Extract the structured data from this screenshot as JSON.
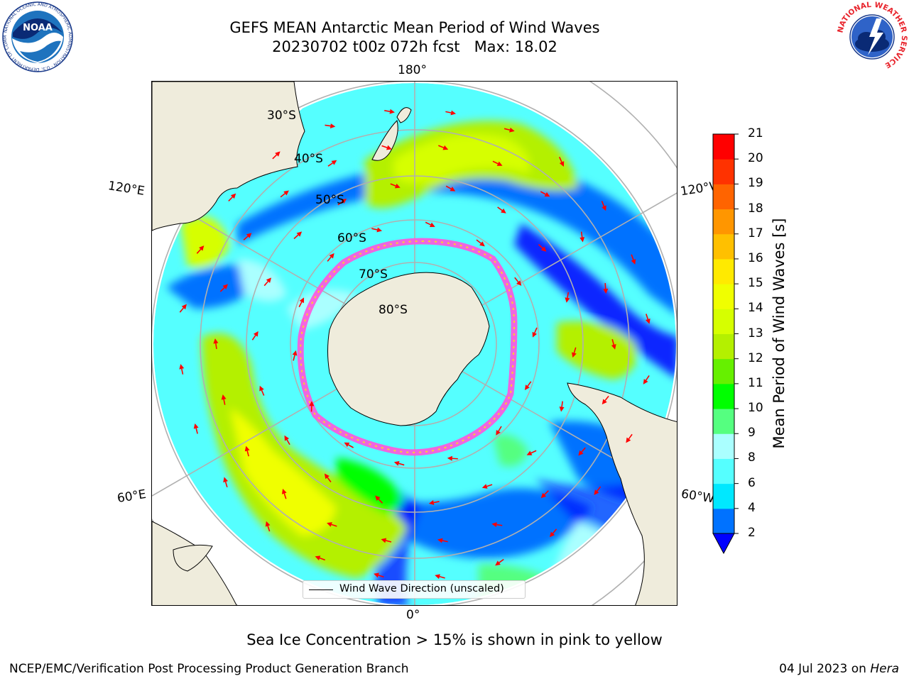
{
  "header": {
    "title_line1": "GEFS MEAN Antarctic Mean Period of Wind Waves",
    "title_line2": "20230702 t00z 072h fcst   Max: 18.02"
  },
  "logos": {
    "left": "noaa-logo",
    "left_text": "NOAA",
    "left_ring_text": "NATIONAL OCEANIC AND ATMOSPHERIC ADMINISTRATION · U.S. DEPARTMENT OF COMMERCE",
    "right": "nws-logo",
    "right_ring_text": "NATIONAL WEATHER SERVICE"
  },
  "map": {
    "projection": "south-polar-stereographic",
    "longitude_labels": {
      "top": "180°",
      "bottom": "0°",
      "upper_left": "120°E",
      "upper_right": "120°W",
      "lower_left": "60°E",
      "lower_right": "60°W"
    },
    "latitude_labels": [
      "30°S",
      "40°S",
      "50°S",
      "60°S",
      "70°S",
      "80°S"
    ],
    "colors": {
      "land": "#efecdc",
      "ice_edge": "#ff55dd",
      "arrow": "#ff0000"
    },
    "legend": {
      "label": "Wind Wave Direction (unscaled)"
    }
  },
  "colorbar": {
    "label": "Mean Period of Wind Waves [s]",
    "ticks": [
      2,
      4,
      6,
      8,
      9,
      10,
      11,
      12,
      13,
      14,
      15,
      16,
      17,
      18,
      19,
      20,
      21
    ],
    "colors": [
      "#0072ff",
      "#00e8ff",
      "#55ffff",
      "#aaffff",
      "#55ff80",
      "#00ff00",
      "#66f000",
      "#b4f000",
      "#d6ff00",
      "#f0ff00",
      "#ffea00",
      "#ffc000",
      "#ff9600",
      "#ff6400",
      "#ff3200",
      "#ff0000"
    ],
    "extend_min_color": "#0000ff",
    "cmin": 2,
    "cmax": 21
  },
  "subtitle": "Sea Ice Concentration > 15% is shown in pink to yellow",
  "footer": {
    "left": "NCEP/EMC/Verification Post Processing Product Generation Branch",
    "right_prefix": "04 Jul 2023 on ",
    "right_machine": "Hera"
  }
}
